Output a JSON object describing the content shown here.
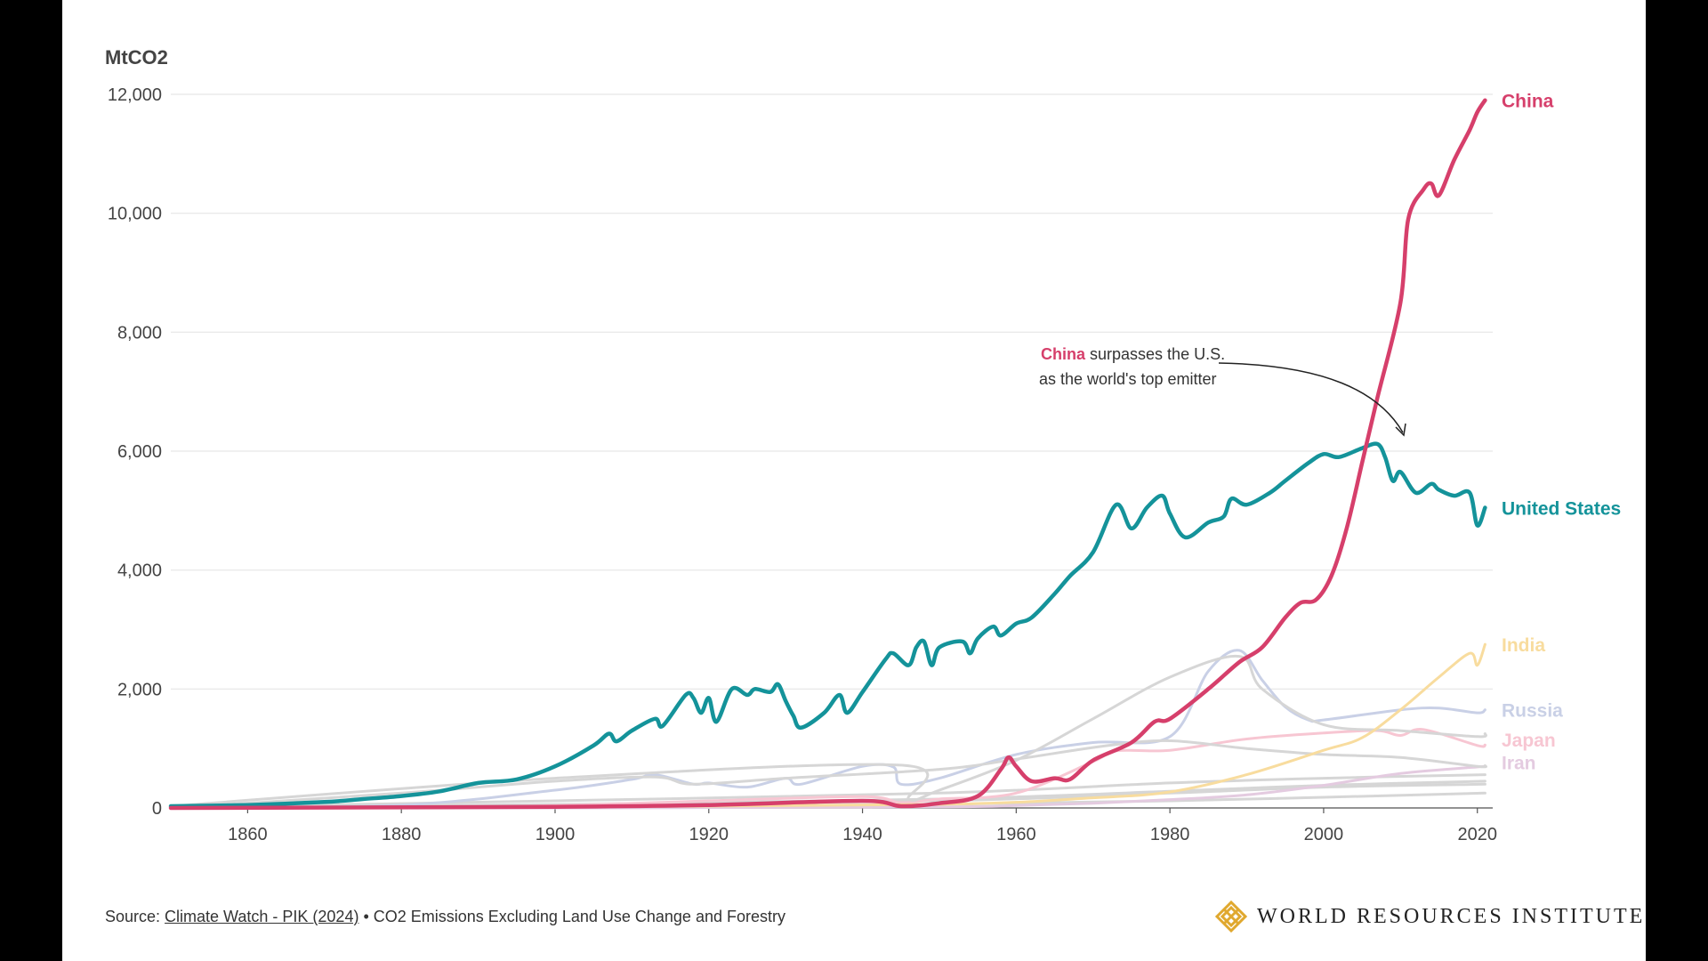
{
  "colors": {
    "china": "#d63f6b",
    "us": "#14939a",
    "india": "#f8dc9e",
    "russia": "#c9d0e6",
    "japan": "#f7c6d2",
    "iran": "#e4cbe0",
    "other": "#d6d6d6",
    "grid": "#e6e6e6",
    "text": "#444444"
  },
  "annotation": {
    "strong": "China",
    "line1_rest": " surpasses the U.S.",
    "line2": "as the world's top emitter"
  },
  "footer": {
    "source_prefix": "Source: ",
    "source_link": "Climate Watch - PIK (2024)",
    "source_rest": " • CO2 Emissions Excluding Land Use Change and Forestry"
  },
  "logo": {
    "text": "WORLD RESOURCES INSTITUTE",
    "icon": "wri-knot-icon"
  },
  "chart_data": {
    "type": "line",
    "title": "",
    "xlabel": "",
    "ylabel": "MtCO2",
    "xlim": [
      1850,
      2022
    ],
    "ylim": [
      0,
      12000
    ],
    "x_ticks": [
      1860,
      1880,
      1900,
      1920,
      1940,
      1960,
      1980,
      2000,
      2020
    ],
    "y_ticks": [
      0,
      2000,
      4000,
      6000,
      8000,
      10000,
      12000
    ],
    "y_tick_labels": [
      "0",
      "2,000",
      "4,000",
      "6,000",
      "8,000",
      "10,000",
      "12,000"
    ],
    "x_tick_labels": [
      "1860",
      "1880",
      "1900",
      "1920",
      "1940",
      "1960",
      "1980",
      "2000",
      "2020"
    ],
    "grid": true,
    "series": [
      {
        "name": "",
        "key": "other",
        "x": [
          1850,
          1900,
          1950,
          1980,
          2000,
          2021
        ],
        "y": [
          0,
          20,
          60,
          120,
          180,
          250
        ]
      },
      {
        "name": "",
        "key": "other",
        "x": [
          1850,
          1900,
          1950,
          1980,
          2000,
          2021
        ],
        "y": [
          5,
          60,
          150,
          280,
          380,
          450
        ]
      },
      {
        "name": "",
        "key": "other",
        "x": [
          1850,
          1900,
          1950,
          1980,
          2000,
          2021
        ],
        "y": [
          10,
          120,
          250,
          420,
          500,
          560
        ]
      },
      {
        "name": "",
        "key": "other",
        "x": [
          1850,
          1900,
          1950,
          1980,
          2000,
          2021
        ],
        "y": [
          0,
          40,
          120,
          250,
          350,
          400
        ]
      },
      {
        "name": "Iran",
        "key": "iran",
        "x": [
          1850,
          1900,
          1950,
          1960,
          1970,
          1980,
          1990,
          2000,
          2010,
          2021
        ],
        "y": [
          0,
          0,
          20,
          40,
          80,
          140,
          220,
          380,
          580,
          700
        ]
      },
      {
        "name": "Japan",
        "key": "japan",
        "x": [
          1850,
          1880,
          1900,
          1920,
          1940,
          1945,
          1950,
          1960,
          1970,
          1973,
          1980,
          1990,
          2000,
          2007,
          2010,
          2013,
          2020,
          2021
        ],
        "y": [
          0,
          5,
          40,
          120,
          190,
          90,
          150,
          250,
          780,
          960,
          970,
          1160,
          1260,
          1300,
          1220,
          1320,
          1050,
          1060
        ]
      },
      {
        "name": "Russia",
        "key": "russia",
        "x": [
          1850,
          1880,
          1900,
          1910,
          1913,
          1918,
          1920,
          1925,
          1930,
          1932,
          1940,
          1944,
          1945,
          1950,
          1960,
          1970,
          1980,
          1985,
          1989,
          1992,
          1995,
          1998,
          2000,
          2010,
          2015,
          2020,
          2021
        ],
        "y": [
          0,
          50,
          300,
          480,
          560,
          400,
          420,
          350,
          500,
          400,
          700,
          690,
          400,
          500,
          900,
          1100,
          1200,
          2300,
          2650,
          2150,
          1700,
          1480,
          1480,
          1650,
          1680,
          1600,
          1650
        ]
      },
      {
        "name": "",
        "key": "other",
        "x": [
          1850,
          1900,
          1945,
          1946,
          1950,
          1960,
          1970,
          1980,
          1989,
          1992,
          2000,
          2010,
          2020,
          2021
        ],
        "y": [
          30,
          500,
          720,
          150,
          300,
          800,
          1500,
          2200,
          2550,
          2000,
          1400,
          1300,
          1200,
          1250
        ]
      },
      {
        "name": "",
        "key": "other",
        "x": [
          1850,
          1880,
          1900,
          1913,
          1918,
          1930,
          1950,
          1960,
          1972,
          1980,
          1990,
          2000,
          2010,
          2020,
          2021
        ],
        "y": [
          0,
          250,
          450,
          520,
          400,
          500,
          650,
          820,
          1050,
          1130,
          1000,
          900,
          850,
          700,
          710
        ]
      },
      {
        "name": "India",
        "key": "india",
        "x": [
          1850,
          1900,
          1950,
          1970,
          1980,
          1990,
          2000,
          2005,
          2010,
          2015,
          2019,
          2020,
          2021
        ],
        "y": [
          0,
          20,
          60,
          170,
          270,
          560,
          970,
          1180,
          1650,
          2200,
          2600,
          2400,
          2750
        ]
      },
      {
        "name": "United States",
        "key": "us",
        "x": [
          1850,
          1860,
          1870,
          1875,
          1880,
          1885,
          1890,
          1895,
          1900,
          1905,
          1907,
          1908,
          1910,
          1913,
          1914,
          1917,
          1918,
          1919,
          1920,
          1921,
          1923,
          1925,
          1926,
          1928,
          1929,
          1930,
          1931,
          1932,
          1935,
          1937,
          1938,
          1940,
          1943,
          1944,
          1946,
          1947,
          1948,
          1949,
          1950,
          1953,
          1954,
          1955,
          1957,
          1958,
          1960,
          1962,
          1965,
          1967,
          1970,
          1973,
          1975,
          1977,
          1979,
          1980,
          1982,
          1985,
          1987,
          1988,
          1990,
          1993,
          1995,
          1998,
          2000,
          2002,
          2005,
          2007,
          2008,
          2009,
          2010,
          2012,
          2014,
          2015,
          2017,
          2019,
          2020,
          2021
        ],
        "y": [
          30,
          50,
          100,
          150,
          200,
          280,
          420,
          480,
          700,
          1050,
          1250,
          1120,
          1300,
          1500,
          1380,
          1900,
          1850,
          1600,
          1850,
          1450,
          2000,
          1900,
          2000,
          1950,
          2080,
          1800,
          1550,
          1350,
          1600,
          1900,
          1600,
          1950,
          2500,
          2600,
          2400,
          2700,
          2800,
          2400,
          2700,
          2800,
          2600,
          2850,
          3050,
          2900,
          3100,
          3200,
          3600,
          3900,
          4300,
          5100,
          4700,
          5050,
          5250,
          4950,
          4550,
          4800,
          4900,
          5200,
          5100,
          5300,
          5500,
          5800,
          5950,
          5900,
          6050,
          6120,
          5900,
          5500,
          5650,
          5300,
          5450,
          5350,
          5250,
          5300,
          4750,
          5050
        ]
      },
      {
        "name": "China",
        "key": "china",
        "x": [
          1850,
          1900,
          1920,
          1940,
          1945,
          1950,
          1955,
          1958,
          1959,
          1960,
          1962,
          1965,
          1967,
          1970,
          1975,
          1978,
          1980,
          1985,
          1989,
          1992,
          1995,
          1997,
          1999,
          2001,
          2003,
          2005,
          2007,
          2010,
          2011,
          2013,
          2014,
          2015,
          2017,
          2019,
          2020,
          2021
        ],
        "y": [
          0,
          20,
          50,
          120,
          30,
          80,
          200,
          650,
          850,
          700,
          450,
          500,
          480,
          800,
          1100,
          1450,
          1500,
          2000,
          2450,
          2700,
          3200,
          3450,
          3500,
          3900,
          4700,
          5800,
          6900,
          8500,
          9900,
          10400,
          10500,
          10300,
          10900,
          11400,
          11700,
          11900
        ]
      }
    ],
    "labels": [
      {
        "text": "China",
        "key": "china",
        "y": 11900
      },
      {
        "text": "United States",
        "key": "us",
        "y": 5050
      },
      {
        "text": "India",
        "key": "india",
        "y": 2750
      },
      {
        "text": "Russia",
        "key": "russia",
        "y": 1650
      },
      {
        "text": "Japan",
        "key": "japan",
        "y": 1150
      },
      {
        "text": "Iran",
        "key": "iran",
        "y": 770
      }
    ]
  }
}
